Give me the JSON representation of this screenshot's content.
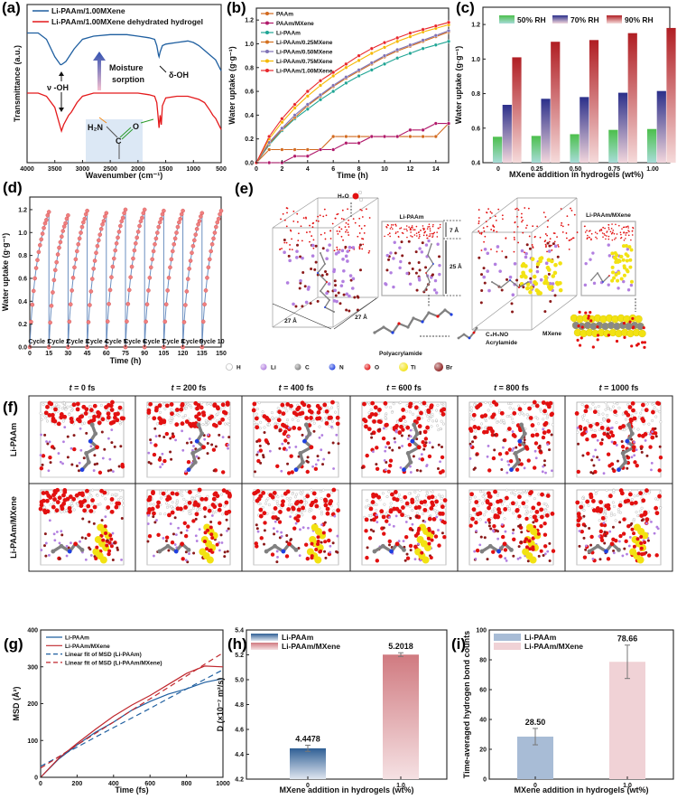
{
  "panel_labels": {
    "a": "(a)",
    "b": "(b)",
    "c": "(c)",
    "d": "(d)",
    "e": "(e)",
    "f": "(f)",
    "g": "(g)",
    "h": "(h)",
    "i": "(i)"
  },
  "chart_data": [
    {
      "id": "a",
      "type": "line",
      "xlabel": "Wavenumber (cm⁻¹)",
      "ylabel": "Transmittance (a.u.)",
      "xlim": [
        4000,
        500
      ],
      "ylim": [
        0,
        1
      ],
      "xticks": [
        4000,
        3500,
        3000,
        2500,
        2000,
        1500,
        1000,
        500
      ],
      "legend": "top-left",
      "series": [
        {
          "name": "Li-PAAm/1.00MXene",
          "color": "#1f5fa0",
          "x": [
            4000,
            3800,
            3650,
            3500,
            3400,
            3380,
            3300,
            3150,
            3000,
            2800,
            2500,
            2200,
            2000,
            1800,
            1700,
            1660,
            1630,
            1620,
            1600,
            1560,
            1500,
            1300,
            1100,
            1000,
            900,
            800,
            700,
            600,
            500
          ],
          "y": [
            0.82,
            0.82,
            0.78,
            0.67,
            0.62,
            0.62,
            0.64,
            0.72,
            0.78,
            0.8,
            0.81,
            0.81,
            0.8,
            0.79,
            0.78,
            0.74,
            0.68,
            0.67,
            0.7,
            0.74,
            0.75,
            0.76,
            0.77,
            0.76,
            0.74,
            0.71,
            0.68,
            0.65,
            0.58
          ]
        },
        {
          "name": "Li-PAAm/1.00MXene dehydrated hydrogel",
          "color": "#e41a1c",
          "x": [
            4000,
            3800,
            3650,
            3500,
            3420,
            3380,
            3340,
            3250,
            3200,
            3100,
            3000,
            2800,
            2500,
            2200,
            2000,
            1800,
            1700,
            1660,
            1640,
            1620,
            1600,
            1580,
            1560,
            1500,
            1300,
            1100,
            1000,
            900,
            800,
            700,
            650,
            600,
            500
          ],
          "y": [
            0.44,
            0.44,
            0.42,
            0.35,
            0.25,
            0.2,
            0.24,
            0.3,
            0.32,
            0.38,
            0.42,
            0.44,
            0.44,
            0.44,
            0.44,
            0.43,
            0.42,
            0.38,
            0.3,
            0.22,
            0.3,
            0.24,
            0.36,
            0.41,
            0.42,
            0.42,
            0.41,
            0.4,
            0.38,
            0.33,
            0.3,
            0.28,
            0.21
          ]
        }
      ],
      "annotations": {
        "stretch": "ν -OH",
        "bend": "δ-OH",
        "arrow_text_1": "Moisture",
        "arrow_text_2": "sorption",
        "amine": "H₂N",
        "carbon": "C",
        "oxygen": "O"
      }
    },
    {
      "id": "b",
      "type": "line",
      "xlabel": "Time (h)",
      "ylabel": "Water uptake (g·g⁻¹)",
      "xlim": [
        0,
        15
      ],
      "ylim": [
        0,
        1.3
      ],
      "xticks": [
        0,
        2,
        4,
        6,
        8,
        10,
        12,
        14
      ],
      "yticks": [
        0,
        0.2,
        0.4,
        0.6,
        0.8,
        1.0,
        1.2
      ],
      "legend": "top-left",
      "x": [
        0,
        1,
        2,
        3,
        4,
        5,
        6,
        7,
        8,
        9,
        10,
        11,
        12,
        13,
        14,
        15
      ],
      "series": [
        {
          "name": "PAAm",
          "color": "#d2691e",
          "values": [
            0,
            0.11,
            0.11,
            0.11,
            0.11,
            0.11,
            0.22,
            0.22,
            0.22,
            0.22,
            0.22,
            0.22,
            0.22,
            0.22,
            0.22,
            0.33
          ]
        },
        {
          "name": "PAAm/MXene",
          "color": "#b0186a",
          "values": [
            0,
            0,
            0,
            0.055,
            0.055,
            0.11,
            0.11,
            0.165,
            0.165,
            0.22,
            0.22,
            0.22,
            0.275,
            0.275,
            0.33,
            0.33
          ]
        },
        {
          "name": "Li-PAAm",
          "color": "#1fa594",
          "values": [
            0,
            0.15,
            0.27,
            0.37,
            0.45,
            0.53,
            0.6,
            0.67,
            0.73,
            0.78,
            0.83,
            0.88,
            0.92,
            0.96,
            0.99,
            1.02
          ]
        },
        {
          "name": "Li-PAAm/0.25MXene",
          "color": "#d4701f",
          "values": [
            0,
            0.16,
            0.28,
            0.38,
            0.48,
            0.56,
            0.64,
            0.71,
            0.77,
            0.83,
            0.89,
            0.94,
            0.98,
            1.02,
            1.06,
            1.1
          ]
        },
        {
          "name": "Li-PAAm/0.50MXene",
          "color": "#7f72b5",
          "values": [
            0,
            0.17,
            0.29,
            0.4,
            0.49,
            0.57,
            0.65,
            0.72,
            0.78,
            0.84,
            0.9,
            0.95,
            0.99,
            1.03,
            1.07,
            1.11
          ]
        },
        {
          "name": "Li-PAAm/0.75MXene",
          "color": "#f5b800",
          "values": [
            0,
            0.2,
            0.34,
            0.46,
            0.56,
            0.65,
            0.73,
            0.8,
            0.86,
            0.92,
            0.97,
            1.02,
            1.06,
            1.1,
            1.13,
            1.16
          ]
        },
        {
          "name": "Li-PAAm/1.00MXene",
          "color": "#e8262b",
          "values": [
            0,
            0.22,
            0.37,
            0.49,
            0.6,
            0.69,
            0.76,
            0.83,
            0.9,
            0.96,
            1.01,
            1.05,
            1.09,
            1.12,
            1.15,
            1.18
          ]
        }
      ]
    },
    {
      "id": "c",
      "type": "bar",
      "xlabel": "MXene addition in hydrogels (wt%)",
      "ylabel": "Water uptake (g·g⁻¹)",
      "ylim": [
        0.4,
        1.3
      ],
      "yticks": [
        0.4,
        0.6,
        0.8,
        1.0,
        1.2
      ],
      "categories": [
        "0",
        "0.25",
        "0.50",
        "0.75",
        "1.00"
      ],
      "legend": "top",
      "series": [
        {
          "name": "50% RH",
          "color": "#4cbf4c",
          "values": [
            0.55,
            0.555,
            0.565,
            0.59,
            0.595
          ]
        },
        {
          "name": "70% RH",
          "color": "#2b2f8a",
          "values": [
            0.735,
            0.77,
            0.78,
            0.805,
            0.815
          ]
        },
        {
          "name": "90% RH",
          "color": "#b01e23",
          "values": [
            1.01,
            1.1,
            1.11,
            1.15,
            1.18
          ]
        }
      ]
    },
    {
      "id": "d",
      "type": "line",
      "xlabel": "Time (h)",
      "ylabel": "Water uptake (g·g⁻¹)",
      "xlim": [
        0,
        150
      ],
      "ylim": [
        0,
        1.31
      ],
      "xticks": [
        0,
        15,
        30,
        45,
        60,
        75,
        90,
        105,
        120,
        135,
        150
      ],
      "yticks": [
        0,
        0.2,
        0.4,
        0.6,
        0.8,
        1.0,
        1.2
      ],
      "line_color": "#6b8fc0",
      "marker_color": "#f07f7f",
      "cycle_labels": [
        "Cycle 1",
        "Cycle 2",
        "Cycle 3",
        "Cycle 4",
        "Cycle 5",
        "Cycle 6",
        "Cycle 7",
        "Cycle 8",
        "Cycle 9",
        "Cycle 10"
      ],
      "cycle_hours": [
        0,
        1,
        2,
        3,
        4,
        5,
        6,
        7,
        8,
        9,
        10,
        11,
        12,
        13,
        14,
        15
      ],
      "cycle_profile": [
        0,
        0.22,
        0.37,
        0.49,
        0.6,
        0.69,
        0.76,
        0.83,
        0.89,
        0.94,
        0.99,
        1.04,
        1.08,
        1.11,
        1.15,
        1.18
      ],
      "cycle_max": [
        1.18,
        1.15,
        1.19,
        1.17,
        1.2,
        1.2,
        1.19,
        1.19,
        1.17,
        1.19
      ]
    },
    {
      "id": "g",
      "type": "line",
      "xlabel": "Time (fs)",
      "ylabel": "MSD (Å²)",
      "xlim": [
        0,
        1000
      ],
      "ylim": [
        0,
        400
      ],
      "xticks": [
        0,
        200,
        400,
        600,
        800,
        1000
      ],
      "yticks": [
        0,
        100,
        200,
        300,
        400
      ],
      "legend": "top-left",
      "x": [
        0,
        100,
        200,
        300,
        400,
        500,
        600,
        700,
        800,
        900,
        1000
      ],
      "series": [
        {
          "name": "Li-PAAm",
          "color": "#1f5fa0",
          "dash": false,
          "values": [
            0,
            50,
            88,
            122,
            150,
            182,
            206,
            226,
            240,
            258,
            268
          ]
        },
        {
          "name": "Li-PAAm/MXene",
          "color": "#c0272d",
          "dash": false,
          "values": [
            0,
            52,
            92,
            130,
            166,
            196,
            222,
            252,
            282,
            302,
            300
          ]
        },
        {
          "name": "Linear fit of MSD (Li-PAAm)",
          "color": "#1f5fa0",
          "dash": true,
          "values": [
            30,
            56,
            82,
            109,
            135,
            161,
            187,
            214,
            240,
            266,
            292
          ]
        },
        {
          "name": "Linear fit of MSD (Li-PAAm/MXene)",
          "color": "#c0272d",
          "dash": true,
          "values": [
            25,
            56,
            88,
            119,
            150,
            182,
            213,
            244,
            275,
            307,
            338
          ]
        }
      ]
    },
    {
      "id": "h",
      "type": "bar",
      "xlabel": "MXene addition in hydrogels (wt%)",
      "ylabel": "D (×10⁻⁷ m²/s)",
      "ylim": [
        4.2,
        5.4
      ],
      "yticks": [
        4.2,
        4.4,
        4.6,
        4.8,
        5.0,
        5.2,
        5.4
      ],
      "categories": [
        "0",
        "1.0"
      ],
      "legend": "top-left",
      "series": [
        {
          "names": [
            "Li-PAAm",
            "Li-PAAm/MXene"
          ],
          "colors": [
            "#2f5f95",
            "#d07a80"
          ],
          "values": [
            4.4478,
            5.2018
          ],
          "errors": [
            0.025,
            0.015
          ],
          "labels": [
            "4.4478",
            "5.2018"
          ]
        }
      ]
    },
    {
      "id": "i",
      "type": "bar",
      "xlabel": "MXene addition in hydrogels (wt%)",
      "ylabel": "Time-averaged hydrogen bond counts",
      "ylim": [
        0,
        100
      ],
      "yticks": [
        0,
        20,
        40,
        60,
        80,
        100
      ],
      "categories": [
        "0",
        "1.0"
      ],
      "legend": "top-left",
      "series": [
        {
          "names": [
            "Li-PAAm",
            "Li-PAAm/MXene"
          ],
          "colors": [
            "#a8bcd6",
            "#f0d2d6"
          ],
          "values": [
            28.5,
            78.66
          ],
          "errors": [
            5.5,
            11.2
          ],
          "labels": [
            "28.50",
            "78.66"
          ]
        }
      ]
    }
  ],
  "panel_e": {
    "water": "H₂O",
    "slice1_title": "Li-PAAm",
    "slice2_title": "Li-PAAm/MXene",
    "dim_top": "7 Å",
    "dim_mid": "25 Å",
    "dim_w1": "27 Å",
    "dim_w2": "27 Å",
    "polymer": "Polyacrylamide",
    "monomer_formula": "C₃H₅NO",
    "monomer_name": "Acrylamide",
    "mxene": "MXene"
  },
  "atom_legend": [
    {
      "symbol": "H",
      "color": "#ffffff"
    },
    {
      "symbol": "Li",
      "color": "#b27fe0"
    },
    {
      "symbol": "C",
      "color": "#808080"
    },
    {
      "symbol": "N",
      "color": "#2040e0"
    },
    {
      "symbol": "O",
      "color": "#e21010"
    },
    {
      "symbol": "Ti",
      "color": "#f2e212"
    },
    {
      "symbol": "Br",
      "color": "#8b1a1a"
    }
  ],
  "panel_f": {
    "time_symbol": "t",
    "times": [
      "= 0 fs",
      "= 200 fs",
      "= 400 fs",
      "= 600 fs",
      "= 800 fs",
      "= 1000 fs"
    ],
    "rows": [
      "Li-PAAm",
      "Li-PAAm/MXene"
    ]
  }
}
